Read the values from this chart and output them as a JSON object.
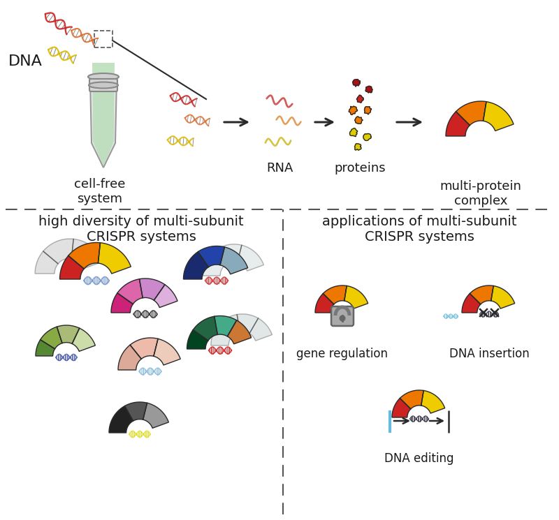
{
  "bg_color": "#ffffff",
  "border_color": "#2a2a2a",
  "dna_colors": [
    "#cc2222",
    "#dd6622",
    "#ddbb00"
  ],
  "rna_colors": [
    "#cc4444",
    "#dd8833",
    "#ccbb22"
  ],
  "protein_dark_red": "#aa1111",
  "protein_red": "#cc2222",
  "protein_orange": "#ee7700",
  "protein_yellow": "#ddcc00",
  "complex_colors": [
    "#cc2222",
    "#ee7700",
    "#eecc00"
  ],
  "text_color": "#1a1a1a",
  "arrow_color": "#2a2a2a",
  "dashed_line_color": "#555555",
  "tube_body_color": "#e0e0e0",
  "tube_liquid_color": "#b8ddb8",
  "lock_color": "#999999",
  "dna_insert_color": "#66bbdd",
  "labels": {
    "dna": "DNA",
    "cell_free": "cell-free\nsystem",
    "rna": "RNA",
    "proteins": "proteins",
    "complex": "multi-protein\ncomplex",
    "diversity": "high diversity of multi-subunit\nCRISPR systems",
    "applications": "applications of multi-subunit\nCRISPR systems",
    "gene_reg": "gene regulation",
    "dna_insert": "DNA insertion",
    "dna_edit": "DNA editing"
  },
  "font_size_main": 14,
  "font_size_label": 13,
  "font_size_small": 12
}
